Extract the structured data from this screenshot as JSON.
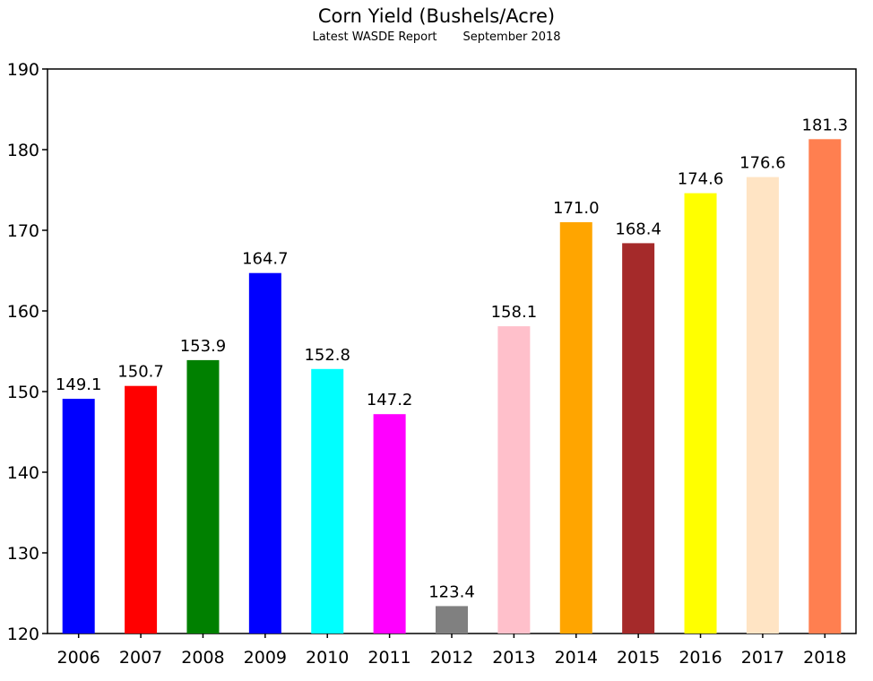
{
  "chart_data": {
    "type": "bar",
    "title": "Corn Yield (Bushels/Acre)",
    "subtitle_left": "Latest WASDE Report",
    "subtitle_right": "September 2018",
    "xlabel": "",
    "ylabel": "",
    "categories": [
      "2006",
      "2007",
      "2008",
      "2009",
      "2010",
      "2011",
      "2012",
      "2013",
      "2014",
      "2015",
      "2016",
      "2017",
      "2018"
    ],
    "values": [
      149.1,
      150.7,
      153.9,
      164.7,
      152.8,
      147.2,
      123.4,
      158.1,
      171.0,
      168.4,
      174.6,
      176.6,
      181.3
    ],
    "value_labels": [
      "149.1",
      "150.7",
      "153.9",
      "164.7",
      "152.8",
      "147.2",
      "123.4",
      "158.1",
      "171.0",
      "168.4",
      "174.6",
      "176.6",
      "181.3"
    ],
    "colors": [
      "#0000ff",
      "#ff0000",
      "#008000",
      "#0000ff",
      "#00ffff",
      "#ff00ff",
      "#808080",
      "#ffc0cb",
      "#ffa500",
      "#a52a2a",
      "#ffff00",
      "#ffe4c4",
      "#ff7f50"
    ],
    "ylim": [
      120,
      190
    ],
    "yticks": [
      120,
      130,
      140,
      150,
      160,
      170,
      180,
      190
    ],
    "grid": false,
    "legend": "none"
  }
}
